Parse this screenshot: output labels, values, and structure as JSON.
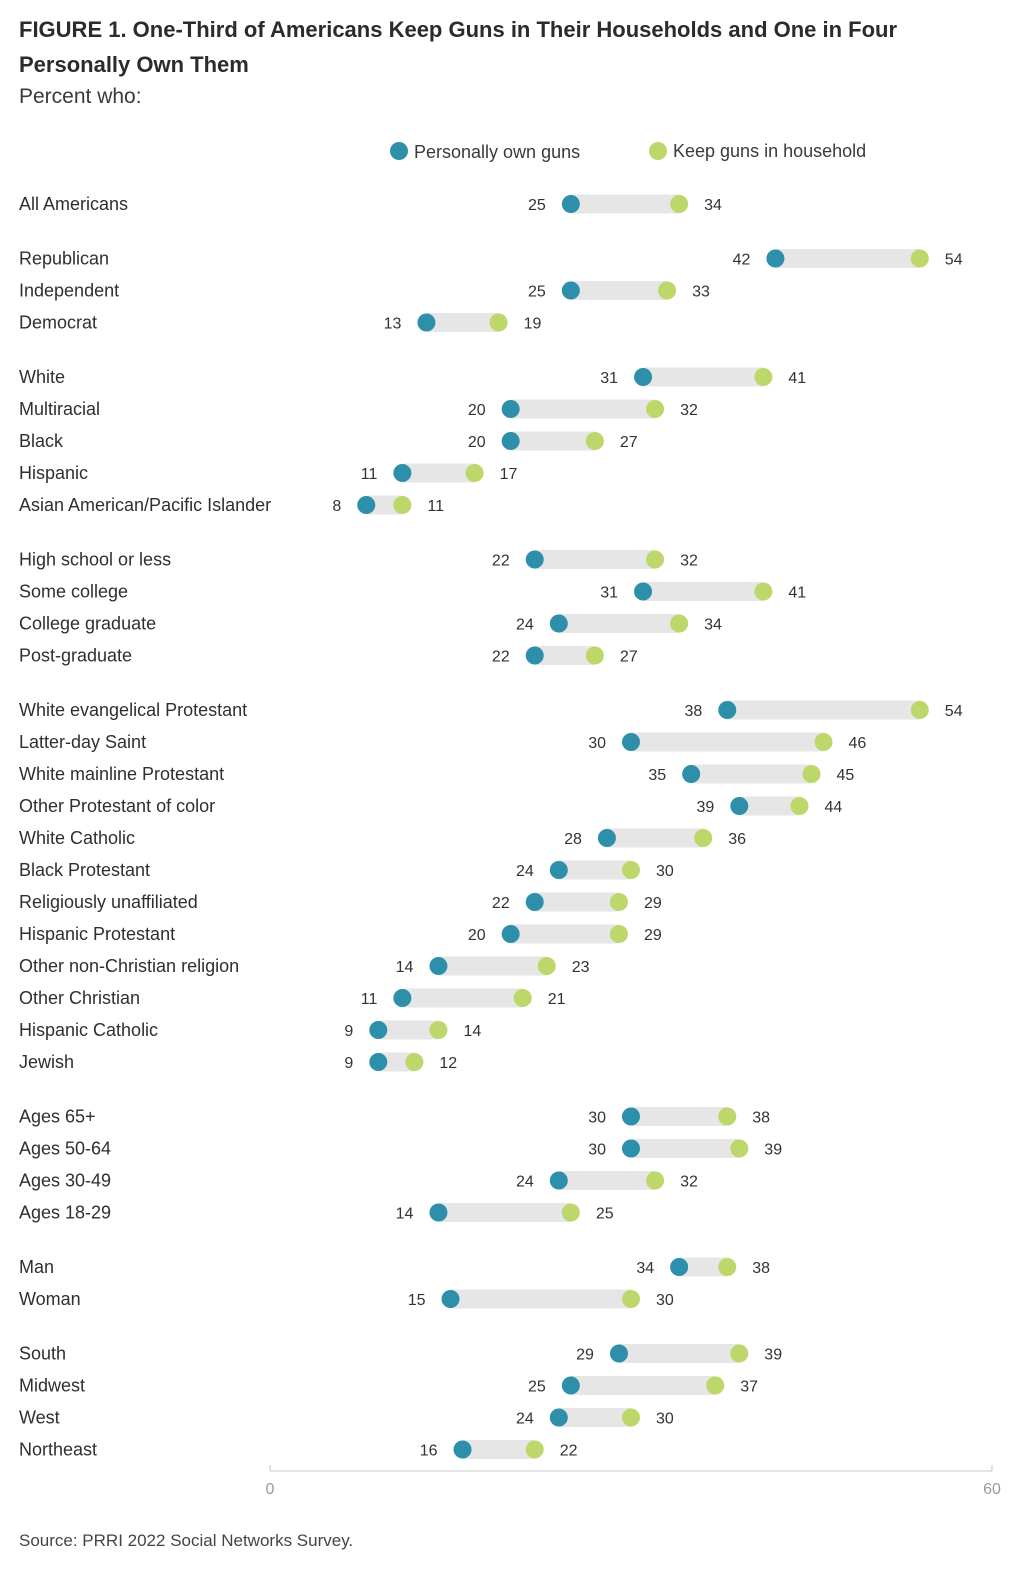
{
  "title": "FIGURE 1.  One-Third of Americans Keep Guns in Their Households and One in Four Personally Own Them",
  "subtitle": "Percent who:",
  "source": "Source: PRRI 2022 Social Networks Survey.",
  "colors": {
    "own": "#2e8fab",
    "household": "#bdd76a",
    "connector": "#e6e6e6",
    "axis": "#c8c8c8"
  },
  "chart_data": {
    "type": "dumbbell",
    "xlim": [
      0,
      60
    ],
    "x_ticks": [
      "0",
      "60"
    ],
    "legend": {
      "position": "top",
      "entries": [
        "Personally own guns",
        "Keep guns in household"
      ]
    },
    "series": [
      {
        "name": "Personally own guns"
      },
      {
        "name": "Keep guns in household"
      }
    ],
    "groups": [
      {
        "rows": [
          {
            "label": "All Americans",
            "own": 25,
            "household": 34
          }
        ]
      },
      {
        "rows": [
          {
            "label": "Republican",
            "own": 42,
            "household": 54
          },
          {
            "label": "Independent",
            "own": 25,
            "household": 33
          },
          {
            "label": "Democrat",
            "own": 13,
            "household": 19
          }
        ]
      },
      {
        "rows": [
          {
            "label": "White",
            "own": 31,
            "household": 41
          },
          {
            "label": "Multiracial",
            "own": 20,
            "household": 32
          },
          {
            "label": "Black",
            "own": 20,
            "household": 27
          },
          {
            "label": "Hispanic",
            "own": 11,
            "household": 17
          },
          {
            "label": "Asian American/Pacific Islander",
            "own": 8,
            "household": 11
          }
        ]
      },
      {
        "rows": [
          {
            "label": "High school or less",
            "own": 22,
            "household": 32
          },
          {
            "label": "Some college",
            "own": 31,
            "household": 41
          },
          {
            "label": "College graduate",
            "own": 24,
            "household": 34
          },
          {
            "label": "Post-graduate",
            "own": 22,
            "household": 27
          }
        ]
      },
      {
        "rows": [
          {
            "label": "White evangelical Protestant",
            "own": 38,
            "household": 54
          },
          {
            "label": "Latter-day Saint",
            "own": 30,
            "household": 46
          },
          {
            "label": "White mainline Protestant",
            "own": 35,
            "household": 45
          },
          {
            "label": "Other Protestant of color",
            "own": 39,
            "household": 44
          },
          {
            "label": "White Catholic",
            "own": 28,
            "household": 36
          },
          {
            "label": "Black Protestant",
            "own": 24,
            "household": 30
          },
          {
            "label": "Religiously unaffiliated",
            "own": 22,
            "household": 29
          },
          {
            "label": "Hispanic Protestant",
            "own": 20,
            "household": 29
          },
          {
            "label": "Other non-Christian religion",
            "own": 14,
            "household": 23
          },
          {
            "label": "Other Christian",
            "own": 11,
            "household": 21
          },
          {
            "label": "Hispanic Catholic",
            "own": 9,
            "household": 14
          },
          {
            "label": "Jewish",
            "own": 9,
            "household": 12
          }
        ]
      },
      {
        "rows": [
          {
            "label": "Ages 65+",
            "own": 30,
            "household": 38
          },
          {
            "label": "Ages 50-64",
            "own": 30,
            "household": 39
          },
          {
            "label": "Ages 30-49",
            "own": 24,
            "household": 32
          },
          {
            "label": "Ages 18-29",
            "own": 14,
            "household": 25
          }
        ]
      },
      {
        "rows": [
          {
            "label": "Man",
            "own": 34,
            "household": 38
          },
          {
            "label": "Woman",
            "own": 15,
            "household": 30
          }
        ]
      },
      {
        "rows": [
          {
            "label": "South",
            "own": 29,
            "household": 39
          },
          {
            "label": "Midwest",
            "own": 25,
            "household": 37
          },
          {
            "label": "West",
            "own": 24,
            "household": 30
          },
          {
            "label": "Northeast",
            "own": 16,
            "household": 22
          }
        ]
      }
    ]
  }
}
